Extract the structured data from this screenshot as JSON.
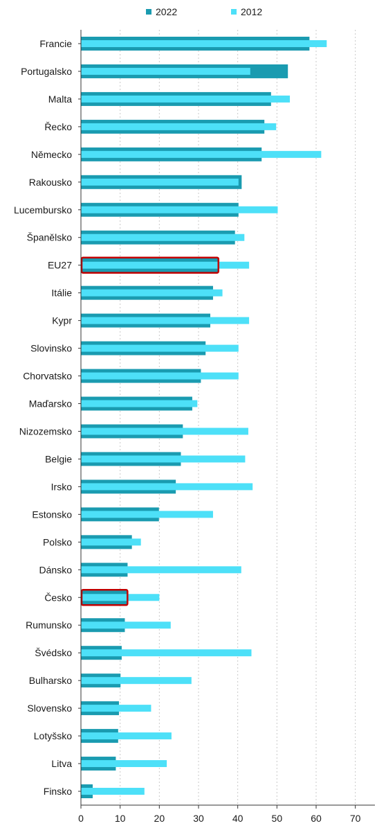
{
  "chart_data": {
    "type": "bar",
    "orientation": "horizontal",
    "categories": [
      "Francie",
      "Portugalsko",
      "Malta",
      "Řecko",
      "Německo",
      "Rakousko",
      "Lucembursko",
      "Španělsko",
      "EU27",
      "Itálie",
      "Kypr",
      "Slovinsko",
      "Chorvatsko",
      "Maďarsko",
      "Nizozemsko",
      "Belgie",
      "Irsko",
      "Estonsko",
      "Polsko",
      "Dánsko",
      "Česko",
      "Rumunsko",
      "Švédsko",
      "Bulharsko",
      "Slovensko",
      "Lotyšsko",
      "Litva",
      "Finsko"
    ],
    "series": [
      {
        "name": "2022",
        "color": "#1a9bb0",
        "values": [
          58.3,
          52.8,
          48.5,
          46.8,
          46.1,
          41.0,
          40.2,
          39.3,
          34.9,
          33.7,
          33.0,
          31.8,
          30.6,
          28.4,
          26.0,
          25.5,
          24.2,
          19.9,
          13.0,
          11.9,
          11.7,
          11.2,
          10.4,
          10.1,
          9.7,
          9.5,
          8.9,
          3.0
        ]
      },
      {
        "name": "2012",
        "color": "#4de0f8",
        "values": [
          62.7,
          43.2,
          53.3,
          49.8,
          61.3,
          40.2,
          50.2,
          41.7,
          42.9,
          36.1,
          42.9,
          40.2,
          40.2,
          29.7,
          42.7,
          41.9,
          43.8,
          33.7,
          15.3,
          40.9,
          20.0,
          22.9,
          43.5,
          28.2,
          17.9,
          23.1,
          21.9,
          16.2
        ]
      }
    ],
    "highlighted": [
      "EU27",
      "Česko"
    ],
    "highlight_color": "#c00000",
    "xlim": [
      0,
      75
    ],
    "xticks": [
      0,
      10,
      20,
      30,
      40,
      50,
      60,
      70
    ],
    "grid": "vertical",
    "legend_position": "top-center",
    "title": "",
    "xlabel": "",
    "ylabel": ""
  }
}
